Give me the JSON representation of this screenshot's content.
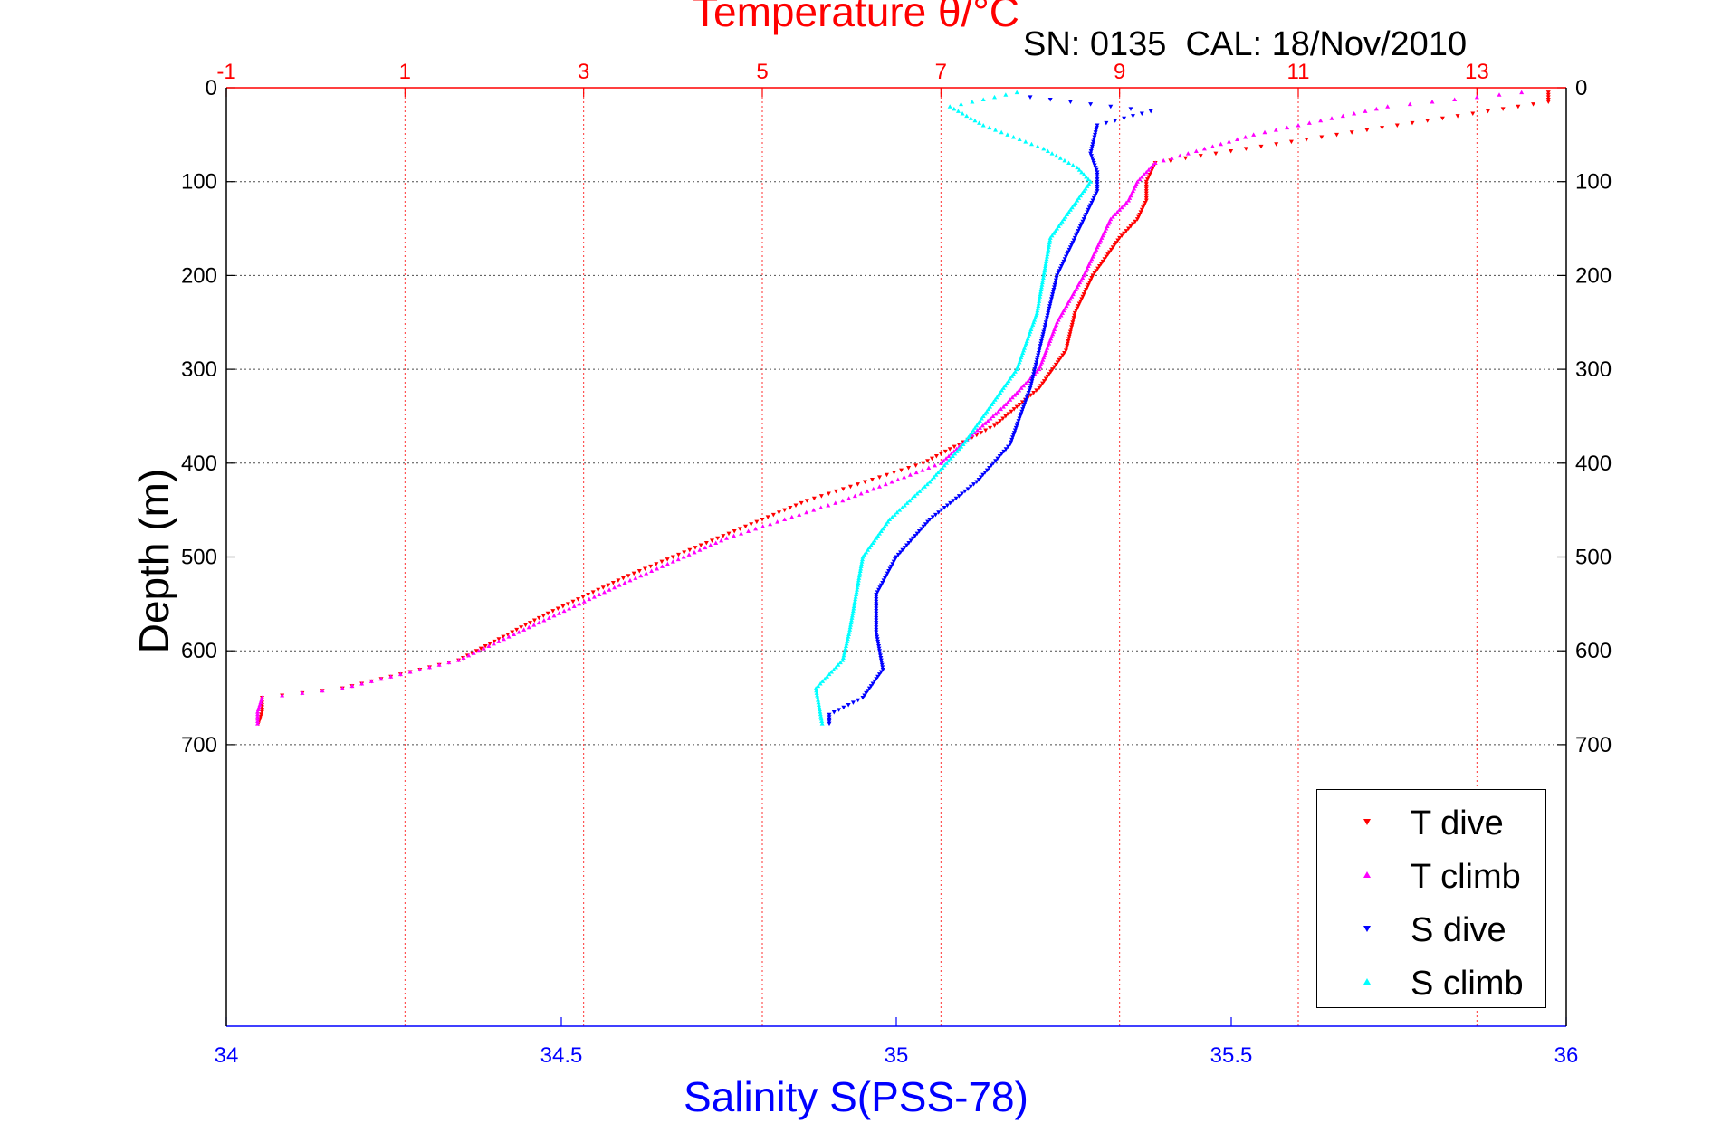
{
  "chart_data": {
    "type": "scatter",
    "title": "Temperature θ/°C",
    "subtitle": "SN: 0135  CAL: 18/Nov/2010",
    "ylabel": "Depth (m)",
    "x2label": "Salinity S(PSS-78)",
    "y_reversed": true,
    "ylim": [
      0,
      1000
    ],
    "yticks": [
      0,
      100,
      200,
      300,
      400,
      500,
      600,
      700
    ],
    "y_tick_labels": [
      "0",
      "100",
      "200",
      "300",
      "400",
      "500",
      "600",
      "700"
    ],
    "temperature_axis": {
      "position": "top",
      "range": [
        -1,
        14
      ],
      "ticks": [
        -1,
        1,
        3,
        5,
        7,
        9,
        11,
        13
      ],
      "tick_labels": [
        "-1",
        "1",
        "3",
        "5",
        "7",
        "9",
        "11",
        "13"
      ],
      "color": "#ff0000"
    },
    "salinity_axis": {
      "position": "bottom",
      "range": [
        34,
        36
      ],
      "ticks": [
        34,
        34.5,
        35,
        35.5,
        36
      ],
      "tick_labels": [
        "34",
        "34.5",
        "35",
        "35.5",
        "36"
      ],
      "color": "#0000ff"
    },
    "grid": true,
    "legend_position": "bottom-right",
    "series": [
      {
        "name": "T dive",
        "axis": "temperature",
        "color": "#ff0000",
        "marker": "triangle-down",
        "points": [
          [
            13.8,
            5
          ],
          [
            13.8,
            15
          ],
          [
            9.4,
            80
          ],
          [
            9.3,
            100
          ],
          [
            9.3,
            120
          ],
          [
            9.2,
            140
          ],
          [
            9.0,
            160
          ],
          [
            8.7,
            200
          ],
          [
            8.5,
            240
          ],
          [
            8.4,
            280
          ],
          [
            8.1,
            320
          ],
          [
            7.6,
            360
          ],
          [
            6.8,
            400
          ],
          [
            5.5,
            440
          ],
          [
            4.5,
            480
          ],
          [
            3.5,
            520
          ],
          [
            2.6,
            560
          ],
          [
            1.6,
            610
          ],
          [
            0.3,
            640
          ],
          [
            -0.6,
            650
          ],
          [
            -0.6,
            665
          ],
          [
            -0.65,
            680
          ]
        ]
      },
      {
        "name": "T climb",
        "axis": "temperature",
        "color": "#ff00ff",
        "marker": "triangle-up",
        "points": [
          [
            13.5,
            5
          ],
          [
            12.0,
            20
          ],
          [
            10.5,
            50
          ],
          [
            9.4,
            80
          ],
          [
            9.2,
            100
          ],
          [
            9.1,
            120
          ],
          [
            8.9,
            140
          ],
          [
            8.8,
            160
          ],
          [
            8.6,
            200
          ],
          [
            8.3,
            250
          ],
          [
            8.1,
            300
          ],
          [
            7.7,
            340
          ],
          [
            7.0,
            400
          ],
          [
            5.9,
            440
          ],
          [
            4.6,
            480
          ],
          [
            3.4,
            530
          ],
          [
            2.5,
            570
          ],
          [
            1.6,
            610
          ],
          [
            0.3,
            640
          ],
          [
            -0.6,
            650
          ],
          [
            -0.65,
            665
          ],
          [
            -0.65,
            680
          ]
        ]
      },
      {
        "name": "S dive",
        "axis": "salinity",
        "color": "#0000ff",
        "marker": "triangle-down",
        "points": [
          [
            35.2,
            10
          ],
          [
            35.38,
            25
          ],
          [
            35.3,
            40
          ],
          [
            35.29,
            70
          ],
          [
            35.3,
            90
          ],
          [
            35.3,
            110
          ],
          [
            35.28,
            140
          ],
          [
            35.24,
            200
          ],
          [
            35.22,
            260
          ],
          [
            35.2,
            320
          ],
          [
            35.17,
            380
          ],
          [
            35.12,
            420
          ],
          [
            35.05,
            460
          ],
          [
            35.0,
            500
          ],
          [
            34.97,
            540
          ],
          [
            34.97,
            580
          ],
          [
            34.98,
            620
          ],
          [
            34.95,
            650
          ],
          [
            34.9,
            668
          ],
          [
            34.9,
            680
          ]
        ]
      },
      {
        "name": "S climb",
        "axis": "salinity",
        "color": "#00ffff",
        "marker": "triangle-up",
        "points": [
          [
            35.18,
            5
          ],
          [
            35.08,
            20
          ],
          [
            35.13,
            40
          ],
          [
            35.22,
            65
          ],
          [
            35.27,
            85
          ],
          [
            35.29,
            100
          ],
          [
            35.27,
            120
          ],
          [
            35.23,
            160
          ],
          [
            35.22,
            200
          ],
          [
            35.21,
            240
          ],
          [
            35.18,
            300
          ],
          [
            35.14,
            340
          ],
          [
            35.1,
            380
          ],
          [
            35.05,
            420
          ],
          [
            34.99,
            460
          ],
          [
            34.95,
            500
          ],
          [
            34.94,
            540
          ],
          [
            34.93,
            580
          ],
          [
            34.92,
            610
          ],
          [
            34.88,
            640
          ],
          [
            34.89,
            680
          ]
        ]
      }
    ],
    "legend": [
      "T dive",
      "T climb",
      "S dive",
      "S climb"
    ]
  }
}
